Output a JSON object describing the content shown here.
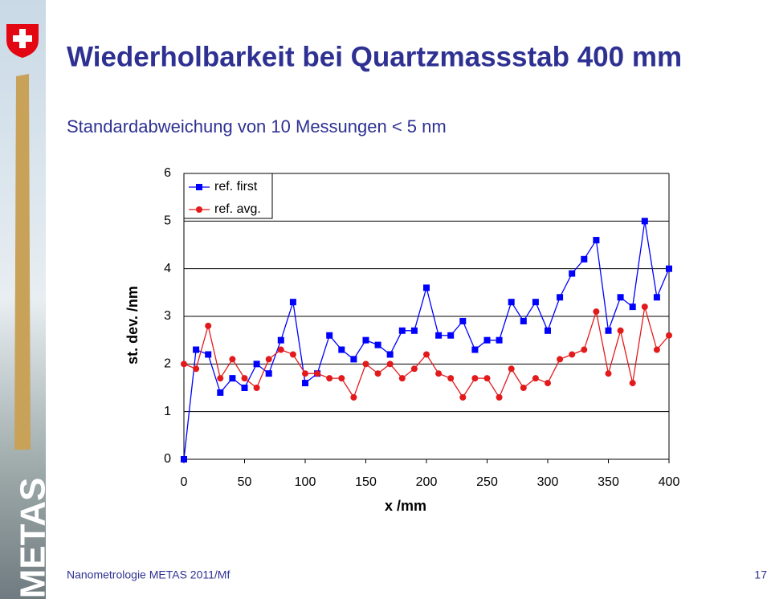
{
  "logo_text": "METAS",
  "chart_data": {
    "type": "line",
    "title": "Wiederholbarkeit bei Quartzmassstab 400 mm",
    "subtitle": "Standardabweichung von 10 Messungen  < 5 nm",
    "x_label": "x /mm",
    "y_label": "st. dev. /nm",
    "x": [
      0,
      10,
      20,
      30,
      40,
      50,
      60,
      70,
      80,
      90,
      100,
      110,
      120,
      130,
      140,
      150,
      160,
      170,
      180,
      190,
      200,
      210,
      220,
      230,
      240,
      250,
      260,
      270,
      280,
      290,
      300,
      310,
      320,
      330,
      340,
      350,
      360,
      370,
      380,
      390,
      400
    ],
    "series": [
      {
        "name": "ref. first",
        "color": "#0000ff",
        "marker": "square",
        "values": [
          0,
          2.3,
          2.2,
          1.4,
          1.7,
          1.5,
          2.0,
          1.8,
          2.5,
          3.3,
          1.6,
          1.8,
          2.6,
          2.3,
          2.1,
          2.5,
          2.4,
          2.2,
          2.7,
          2.7,
          3.6,
          2.6,
          2.6,
          2.9,
          2.3,
          2.5,
          2.5,
          3.3,
          2.9,
          3.3,
          2.7,
          3.4,
          3.9,
          4.2,
          4.6,
          2.7,
          3.4,
          3.2,
          5.0,
          3.4,
          4.0
        ]
      },
      {
        "name": "ref. avg.",
        "color": "#e31a1c",
        "marker": "circle",
        "values": [
          2.0,
          1.9,
          2.8,
          1.7,
          2.1,
          1.7,
          1.5,
          2.1,
          2.3,
          2.2,
          1.8,
          1.8,
          1.7,
          1.7,
          1.3,
          2.0,
          1.8,
          2.0,
          1.7,
          1.9,
          2.2,
          1.8,
          1.7,
          1.3,
          1.7,
          1.7,
          1.3,
          1.9,
          1.5,
          1.7,
          1.6,
          2.1,
          2.2,
          2.3,
          3.1,
          1.8,
          2.7,
          1.6,
          3.2,
          2.3,
          2.6
        ]
      }
    ],
    "xlim": [
      0,
      400
    ],
    "xticks": [
      0,
      50,
      100,
      150,
      200,
      250,
      300,
      350,
      400
    ],
    "ylim": [
      0,
      6
    ],
    "yticks": [
      0,
      1,
      2,
      3,
      4,
      5,
      6
    ],
    "grid": true,
    "legend": "upper left"
  },
  "footer": {
    "text": "Nanometrologie METAS 2011/Mf",
    "page": "17"
  }
}
